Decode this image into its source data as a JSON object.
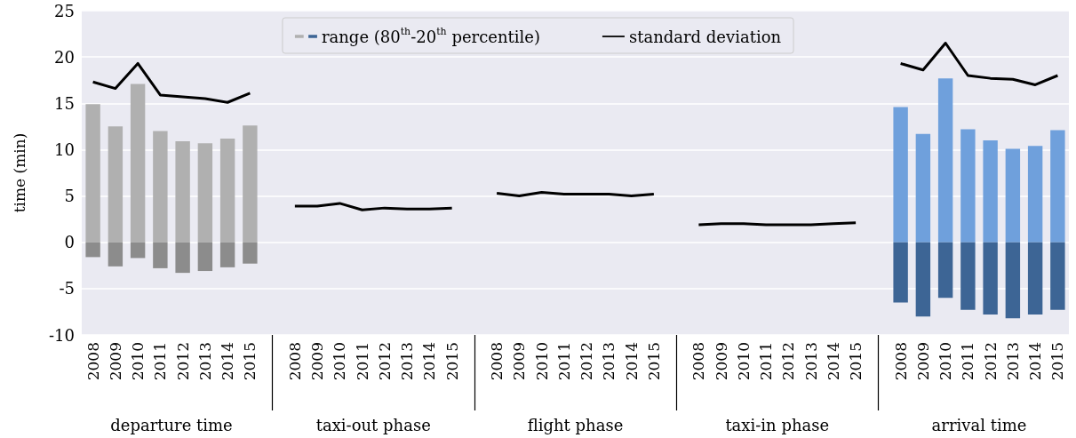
{
  "chart_data": {
    "type": "bar",
    "ylabel": "time (min)",
    "categories": [
      "2008",
      "2009",
      "2010",
      "2011",
      "2012",
      "2013",
      "2014",
      "2015",
      null,
      "2008",
      "2009",
      "2010",
      "2011",
      "2012",
      "2013",
      "2014",
      "2015",
      null,
      "2008",
      "2009",
      "2010",
      "2011",
      "2012",
      "2013",
      "2014",
      "2015",
      null,
      "2008",
      "2009",
      "2010",
      "2011",
      "2012",
      "2013",
      "2014",
      "2015",
      null,
      "2008",
      "2009",
      "2010",
      "2011",
      "2012",
      "2013",
      "2014",
      "2015"
    ],
    "annotations": [
      "departure time",
      "taxi-out phase",
      "flight phase",
      "taxi-in phase",
      "arrival time"
    ],
    "stacked": true,
    "ylim": [
      -10,
      25
    ],
    "yticks": [
      -10,
      -5,
      0,
      5,
      10,
      15,
      20,
      25
    ],
    "grid": "y",
    "legend": "top",
    "series": [
      {
        "type": "bar",
        "name": "range (80$^{th}$-20$^{th}$ percentile)",
        "values": [
          14.9,
          12.5,
          17.1,
          12.0,
          10.9,
          10.7,
          11.2,
          12.6,
          null,
          null,
          null,
          null,
          null,
          null,
          null,
          null,
          null,
          null,
          null,
          null,
          null,
          null,
          null,
          null,
          null,
          null,
          null,
          null,
          null,
          null,
          null,
          null,
          null,
          null,
          null,
          null,
          14.6,
          11.7,
          17.7,
          12.2,
          11.0,
          10.1,
          10.4,
          12.1
        ],
        "colors": [
          "#b0b0b0",
          "#b0b0b0",
          "#b0b0b0",
          "#b0b0b0",
          "#b0b0b0",
          "#b0b0b0",
          "#b0b0b0",
          "#b0b0b0",
          null,
          null,
          null,
          null,
          null,
          null,
          null,
          null,
          null,
          null,
          null,
          null,
          null,
          null,
          null,
          null,
          null,
          null,
          null,
          null,
          null,
          null,
          null,
          null,
          null,
          null,
          null,
          null,
          "#6fa0dc",
          "#6fa0dc",
          "#6fa0dc",
          "#6fa0dc",
          "#6fa0dc",
          "#6fa0dc",
          "#6fa0dc",
          "#6fa0dc"
        ]
      },
      {
        "type": "bar",
        "values": [
          -1.6,
          -2.6,
          -1.7,
          -2.8,
          -3.3,
          -3.1,
          -2.7,
          -2.3,
          null,
          null,
          null,
          null,
          null,
          null,
          null,
          null,
          null,
          null,
          null,
          null,
          null,
          null,
          null,
          null,
          null,
          null,
          null,
          null,
          null,
          null,
          null,
          null,
          null,
          null,
          null,
          null,
          -6.5,
          -8.0,
          -6.0,
          -7.3,
          -7.8,
          -8.2,
          -7.8,
          -7.3
        ],
        "colors": [
          "#8c8c8c",
          "#8c8c8c",
          "#8c8c8c",
          "#8c8c8c",
          "#8c8c8c",
          "#8c8c8c",
          "#8c8c8c",
          "#8c8c8c",
          null,
          null,
          null,
          null,
          null,
          null,
          null,
          null,
          null,
          null,
          null,
          null,
          null,
          null,
          null,
          null,
          null,
          null,
          null,
          null,
          null,
          null,
          null,
          null,
          null,
          null,
          null,
          null,
          "#3d6595",
          "#3d6595",
          "#3d6595",
          "#3d6595",
          "#3d6595",
          "#3d6595",
          "#3d6595",
          "#3d6595"
        ]
      },
      {
        "type": "line",
        "name": "standard deviation",
        "color": "#000000",
        "values": [
          17.3,
          16.6,
          19.3,
          15.9,
          15.7,
          15.5,
          15.1,
          16.1,
          null,
          3.9,
          3.9,
          4.2,
          3.5,
          3.7,
          3.6,
          3.6,
          3.7,
          null,
          5.3,
          5.0,
          5.4,
          5.2,
          5.2,
          5.2,
          5.0,
          5.2,
          null,
          1.9,
          2.0,
          2.0,
          1.9,
          1.9,
          1.9,
          2.0,
          2.1,
          null,
          19.3,
          18.6,
          21.5,
          18.0,
          17.7,
          17.6,
          17.0,
          18.0
        ]
      }
    ]
  }
}
